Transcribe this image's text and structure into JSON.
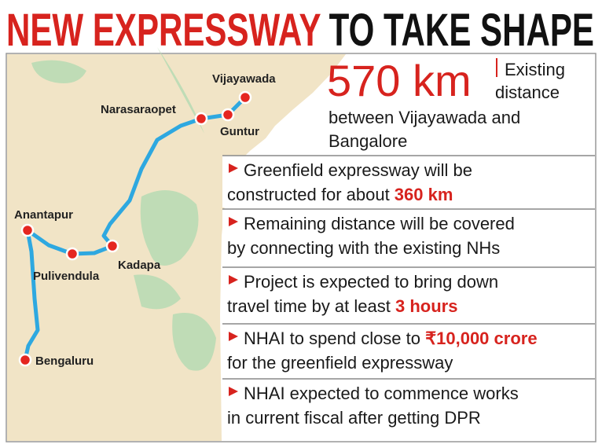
{
  "header": {
    "title_red": "NEW EXPRESSWAY",
    "title_black": "TO TAKE SHAPE"
  },
  "map": {
    "places": [
      "Vijayawada",
      "Narasaraopet",
      "Guntur",
      "Anantapur",
      "Pulivendula",
      "Kadapa",
      "Bengaluru"
    ]
  },
  "stat": {
    "value": "570 km",
    "lines": [
      "Existing",
      "distance",
      "between Vijayawada and",
      "Bangalore"
    ]
  },
  "points": [
    {
      "lines": [
        [
          "Greenfield expressway will be"
        ],
        [
          "constructed for about ",
          "360 km"
        ]
      ]
    },
    {
      "lines": [
        [
          "Remaining distance will be covered"
        ],
        [
          "by connecting with the existing NHs"
        ]
      ]
    },
    {
      "lines": [
        [
          "Project is expected to bring down"
        ],
        [
          "travel time by at least ",
          "3 hours"
        ]
      ]
    },
    {
      "lines": [
        [
          "NHAI to spend close to ",
          "₹10,000 crore"
        ],
        [
          "for the greenfield expressway"
        ]
      ]
    },
    {
      "lines": [
        [
          "NHAI expected to commence works"
        ],
        [
          "in current fiscal after getting DPR"
        ]
      ]
    }
  ]
}
